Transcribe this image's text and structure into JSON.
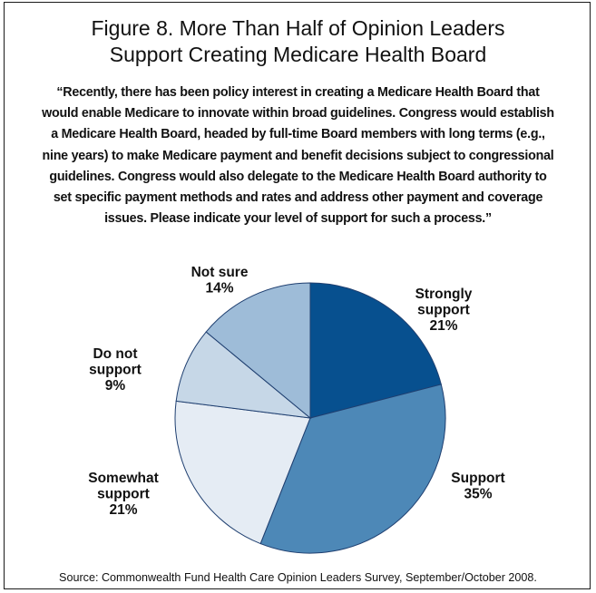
{
  "title_lines": [
    "Figure 8. More Than Half of Opinion Leaders",
    "Support Creating Medicare Health Board"
  ],
  "question_lines": [
    "“Recently, there has been policy interest in creating a Medicare Health Board that",
    "would enable Medicare to innovate within broad guidelines. Congress would establish",
    "a Medicare Health Board, headed by full-time Board members with long terms (e.g.,",
    "nine years) to make Medicare payment and benefit decisions subject to congressional",
    "guidelines.  Congress would also delegate to the Medicare Health Board authority to",
    "set specific payment methods and rates and address other payment and coverage",
    "issues. Please indicate your level of support for such a process.”"
  ],
  "source": "Source: Commonwealth Fund Health Care Opinion Leaders Survey, September/October 2008.",
  "chart_data": {
    "type": "pie",
    "title": "Figure 8. More Than Half of Opinion Leaders Support Creating Medicare Health Board",
    "slices": [
      {
        "label_lines": [
          "Strongly",
          "support"
        ],
        "value": 21,
        "value_label": "21%",
        "color": "#07508f"
      },
      {
        "label_lines": [
          "Support"
        ],
        "value": 35,
        "value_label": "35%",
        "color": "#4d88b7"
      },
      {
        "label_lines": [
          "Somewhat",
          "support"
        ],
        "value": 21,
        "value_label": "21%",
        "color": "#e5ecf4"
      },
      {
        "label_lines": [
          "Do not",
          "support"
        ],
        "value": 9,
        "value_label": "9%",
        "color": "#c6d7e7"
      },
      {
        "label_lines": [
          "Not sure"
        ],
        "value": 14,
        "value_label": "14%",
        "color": "#9ebcd8"
      }
    ]
  }
}
